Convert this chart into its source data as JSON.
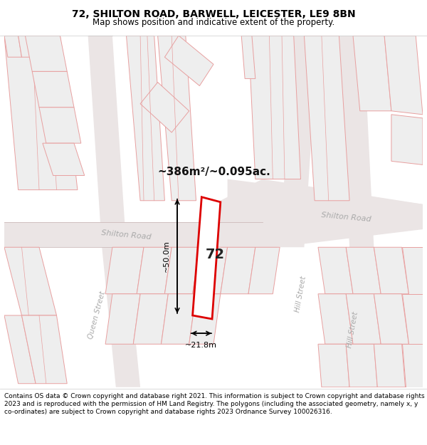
{
  "title_line1": "72, SHILTON ROAD, BARWELL, LEICESTER, LE9 8BN",
  "title_line2": "Map shows position and indicative extent of the property.",
  "footer_text": "Contains OS data © Crown copyright and database right 2021. This information is subject to Crown copyright and database rights 2023 and is reproduced with the permission of HM Land Registry. The polygons (including the associated geometry, namely x, y co-ordinates) are subject to Crown copyright and database rights 2023 Ordnance Survey 100026316.",
  "map_bg": "#ffffff",
  "building_stroke": "#e8a0a0",
  "building_fill": "#eeeeee",
  "road_fill": "#e8d8d8",
  "road_stroke": "#ccaaaa",
  "highlight_stroke": "#dd0000",
  "area_text": "~386m²/~0.095ac.",
  "label_72": "72",
  "dim_width": "~21.8m",
  "dim_height": "~50.0m",
  "road_label_shilton1": "Shilton Road",
  "road_label_shilton2": "Shilton Road",
  "street_label_queen": "Queen Street",
  "street_label_hill": "Hill Street",
  "road_label_color": "#aaaaaa",
  "title_fontsize": 10,
  "subtitle_fontsize": 8.5,
  "footer_fontsize": 6.5
}
